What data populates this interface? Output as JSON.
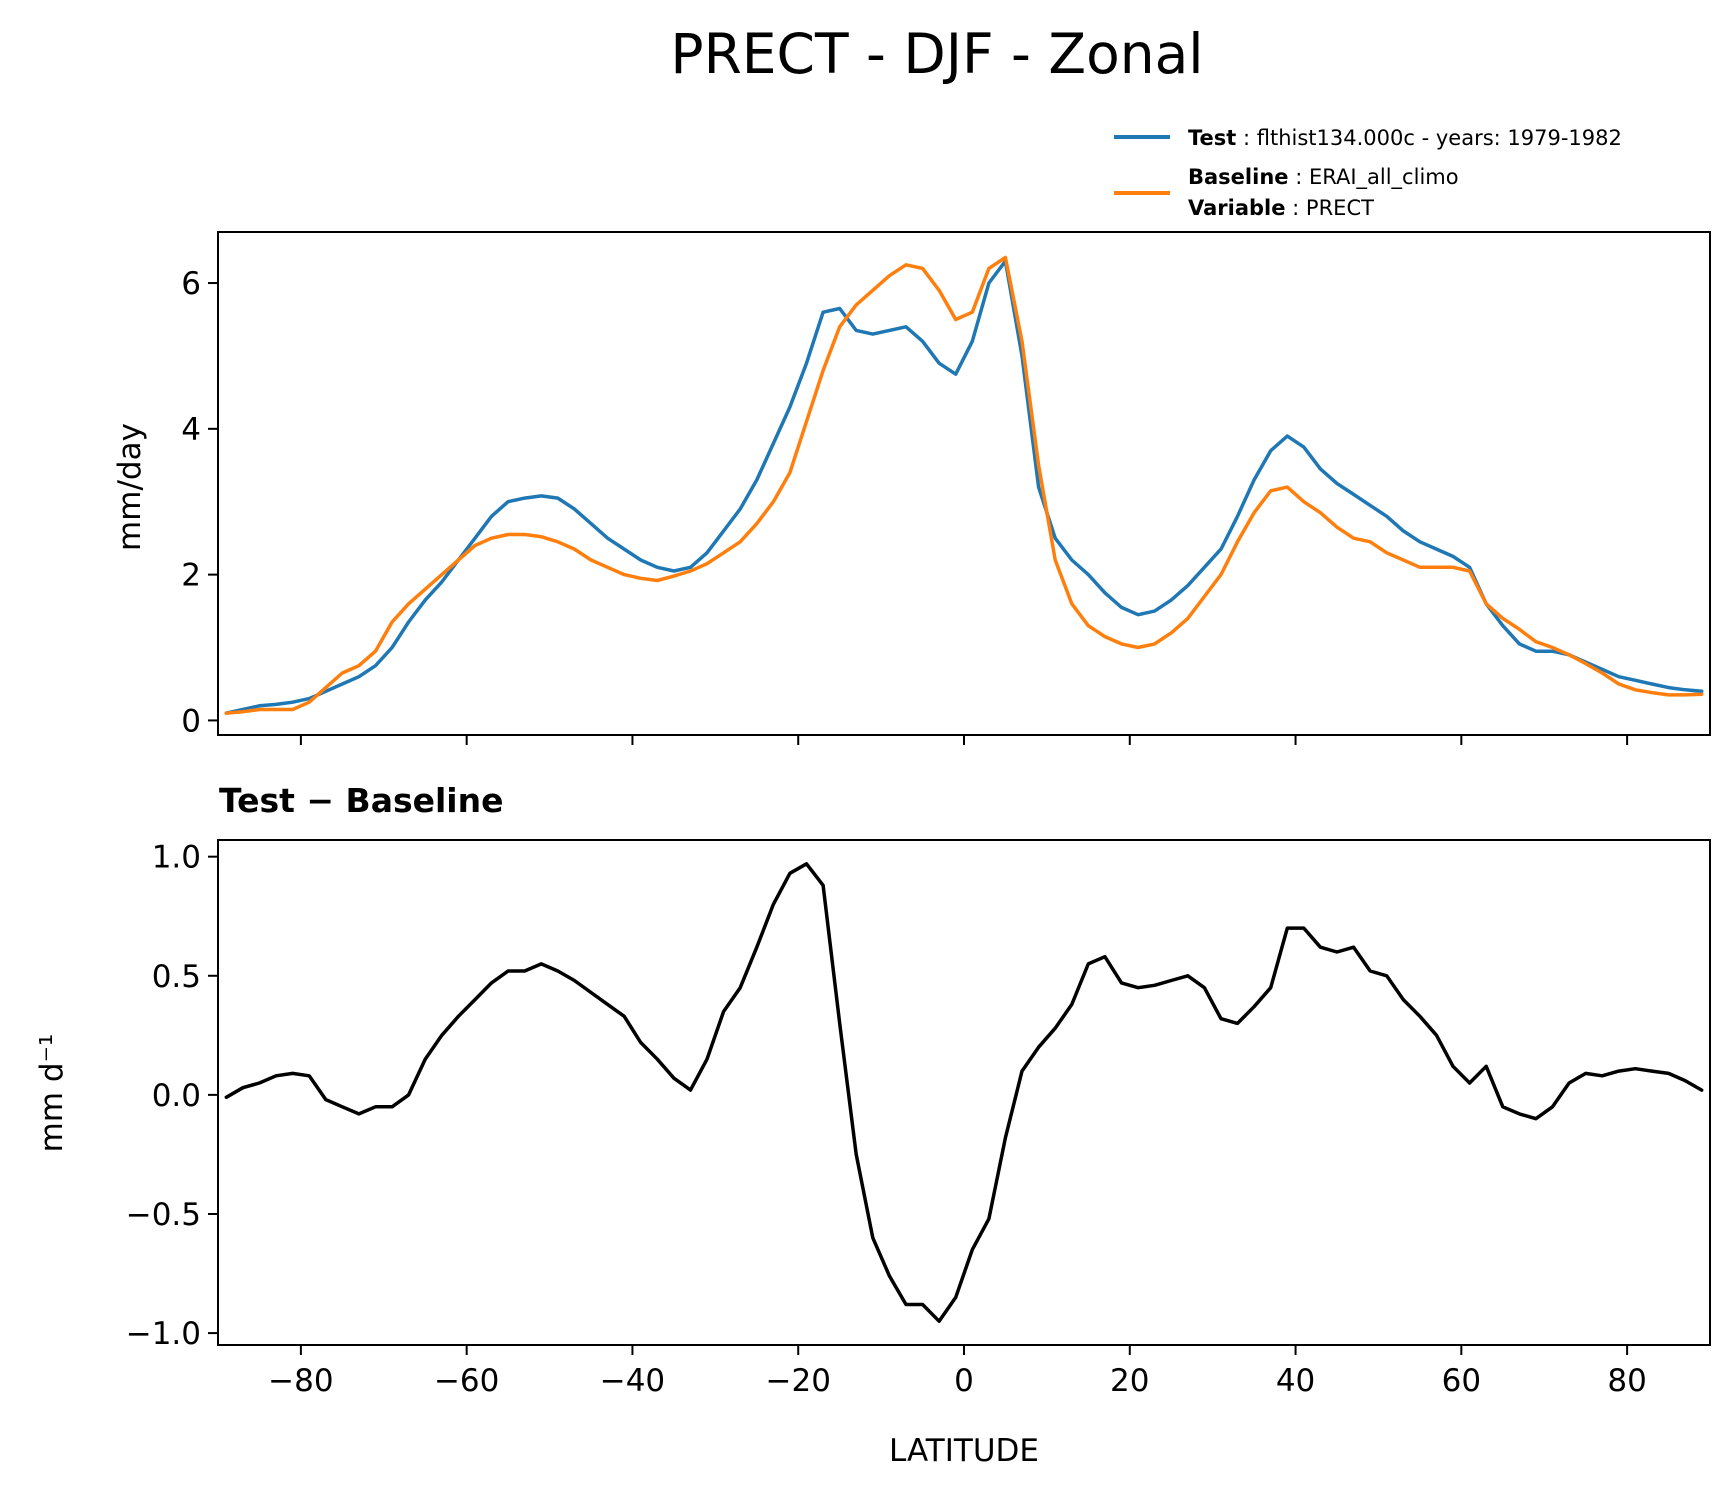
{
  "colors": {
    "test": "#1f77b4",
    "baseline": "#ff7f0e",
    "diff": "#000000"
  },
  "chart_data": [
    {
      "type": "line",
      "title": "PRECT - DJF - Zonal",
      "xlabel": "",
      "ylabel": "mm/day",
      "xlim": [
        -90,
        90
      ],
      "ylim": [
        -0.2,
        6.7
      ],
      "xticks": [
        -80,
        -60,
        -40,
        -20,
        0,
        20,
        40,
        60,
        80
      ],
      "yticks": [
        0,
        2,
        4,
        6
      ],
      "ytick_labels": [
        "0",
        "2",
        "4",
        "6"
      ],
      "legend": {
        "location": "top-right",
        "entries": [
          {
            "key": "Test",
            "text": "flthist134.000c - years: 1979-1982",
            "color": "#1f77b4"
          },
          {
            "key": "Baseline",
            "text": "ERAI_all_climo",
            "color": "#ff7f0e"
          },
          {
            "key": "Variable",
            "text": "PRECT"
          }
        ]
      },
      "series": [
        {
          "name": "Test",
          "color": "#1f77b4",
          "x": [
            -89,
            -87,
            -85,
            -83,
            -81,
            -79,
            -77,
            -75,
            -73,
            -71,
            -69,
            -67,
            -65,
            -63,
            -61,
            -59,
            -57,
            -55,
            -53,
            -51,
            -49,
            -47,
            -45,
            -43,
            -41,
            -39,
            -37,
            -35,
            -33,
            -31,
            -29,
            -27,
            -25,
            -23,
            -21,
            -19,
            -17,
            -15,
            -13,
            -11,
            -9,
            -7,
            -5,
            -3,
            -1,
            1,
            3,
            5,
            7,
            9,
            11,
            13,
            15,
            17,
            19,
            21,
            23,
            25,
            27,
            29,
            31,
            33,
            35,
            37,
            39,
            41,
            43,
            45,
            47,
            49,
            51,
            53,
            55,
            57,
            59,
            61,
            63,
            65,
            67,
            69,
            71,
            73,
            75,
            77,
            79,
            81,
            83,
            85,
            87,
            89
          ],
          "y": [
            0.1,
            0.15,
            0.2,
            0.22,
            0.25,
            0.3,
            0.4,
            0.5,
            0.6,
            0.75,
            1.0,
            1.35,
            1.65,
            1.9,
            2.2,
            2.5,
            2.8,
            3.0,
            3.05,
            3.08,
            3.05,
            2.9,
            2.7,
            2.5,
            2.35,
            2.2,
            2.1,
            2.05,
            2.1,
            2.3,
            2.6,
            2.9,
            3.3,
            3.8,
            4.3,
            4.9,
            5.6,
            5.65,
            5.35,
            5.3,
            5.35,
            5.4,
            5.2,
            4.9,
            4.75,
            5.2,
            6.0,
            6.3,
            5.0,
            3.2,
            2.5,
            2.2,
            2.0,
            1.75,
            1.55,
            1.45,
            1.5,
            1.65,
            1.85,
            2.1,
            2.35,
            2.8,
            3.3,
            3.7,
            3.9,
            3.75,
            3.45,
            3.25,
            3.1,
            2.95,
            2.8,
            2.6,
            2.45,
            2.35,
            2.25,
            2.1,
            1.6,
            1.3,
            1.05,
            0.95,
            0.95,
            0.9,
            0.8,
            0.7,
            0.6,
            0.55,
            0.5,
            0.45,
            0.42,
            0.4
          ]
        },
        {
          "name": "Baseline",
          "color": "#ff7f0e",
          "x": [
            -89,
            -87,
            -85,
            -83,
            -81,
            -79,
            -77,
            -75,
            -73,
            -71,
            -69,
            -67,
            -65,
            -63,
            -61,
            -59,
            -57,
            -55,
            -53,
            -51,
            -49,
            -47,
            -45,
            -43,
            -41,
            -39,
            -37,
            -35,
            -33,
            -31,
            -29,
            -27,
            -25,
            -23,
            -21,
            -19,
            -17,
            -15,
            -13,
            -11,
            -9,
            -7,
            -5,
            -3,
            -1,
            1,
            3,
            5,
            7,
            9,
            11,
            13,
            15,
            17,
            19,
            21,
            23,
            25,
            27,
            29,
            31,
            33,
            35,
            37,
            39,
            41,
            43,
            45,
            47,
            49,
            51,
            53,
            55,
            57,
            59,
            61,
            63,
            65,
            67,
            69,
            71,
            73,
            75,
            77,
            79,
            81,
            83,
            85,
            87,
            89
          ],
          "y": [
            0.1,
            0.12,
            0.15,
            0.15,
            0.15,
            0.25,
            0.45,
            0.65,
            0.75,
            0.95,
            1.35,
            1.6,
            1.8,
            2.0,
            2.2,
            2.4,
            2.5,
            2.55,
            2.55,
            2.52,
            2.45,
            2.35,
            2.2,
            2.1,
            2.0,
            1.95,
            1.92,
            1.98,
            2.05,
            2.15,
            2.3,
            2.45,
            2.7,
            3.0,
            3.4,
            4.1,
            4.8,
            5.4,
            5.7,
            5.9,
            6.1,
            6.25,
            6.2,
            5.9,
            5.5,
            5.6,
            6.2,
            6.35,
            5.2,
            3.5,
            2.2,
            1.6,
            1.3,
            1.15,
            1.05,
            1.0,
            1.05,
            1.2,
            1.4,
            1.7,
            2.0,
            2.45,
            2.85,
            3.15,
            3.2,
            3.0,
            2.85,
            2.65,
            2.5,
            2.45,
            2.3,
            2.2,
            2.1,
            2.1,
            2.1,
            2.05,
            1.6,
            1.4,
            1.25,
            1.08,
            1.0,
            0.9,
            0.78,
            0.65,
            0.5,
            0.42,
            0.38,
            0.35,
            0.35,
            0.36
          ]
        }
      ]
    },
    {
      "type": "line",
      "title": "Test − Baseline",
      "xlabel": "LATITUDE",
      "ylabel": "mm d⁻¹",
      "xlim": [
        -90,
        90
      ],
      "ylim": [
        -1.05,
        1.07
      ],
      "xticks": [
        -80,
        -60,
        -40,
        -20,
        0,
        20,
        40,
        60,
        80
      ],
      "xtick_labels": [
        "−80",
        "−60",
        "−40",
        "−20",
        "0",
        "20",
        "40",
        "60",
        "80"
      ],
      "yticks": [
        -1.0,
        -0.5,
        0.0,
        0.5,
        1.0
      ],
      "ytick_labels": [
        "−1.0",
        "−0.5",
        "0.0",
        "0.5",
        "1.0"
      ],
      "series": [
        {
          "name": "Test − Baseline",
          "color": "#000000",
          "x": [
            -89,
            -87,
            -85,
            -83,
            -81,
            -79,
            -77,
            -75,
            -73,
            -71,
            -69,
            -67,
            -65,
            -63,
            -61,
            -59,
            -57,
            -55,
            -53,
            -51,
            -49,
            -47,
            -45,
            -43,
            -41,
            -39,
            -37,
            -35,
            -33,
            -31,
            -29,
            -27,
            -25,
            -23,
            -21,
            -19,
            -17,
            -15,
            -13,
            -11,
            -9,
            -7,
            -5,
            -3,
            -1,
            1,
            3,
            5,
            7,
            9,
            11,
            13,
            15,
            17,
            19,
            21,
            23,
            25,
            27,
            29,
            31,
            33,
            35,
            37,
            39,
            41,
            43,
            45,
            47,
            49,
            51,
            53,
            55,
            57,
            59,
            61,
            63,
            65,
            67,
            69,
            71,
            73,
            75,
            77,
            79,
            81,
            83,
            85,
            87,
            89
          ],
          "y": [
            -0.01,
            0.03,
            0.05,
            0.08,
            0.09,
            0.08,
            -0.02,
            -0.05,
            -0.08,
            -0.05,
            -0.05,
            0.0,
            0.15,
            0.25,
            0.33,
            0.4,
            0.47,
            0.52,
            0.52,
            0.55,
            0.52,
            0.48,
            0.43,
            0.38,
            0.33,
            0.22,
            0.15,
            0.07,
            0.02,
            0.15,
            0.35,
            0.45,
            0.62,
            0.8,
            0.93,
            0.97,
            0.88,
            0.3,
            -0.25,
            -0.6,
            -0.76,
            -0.88,
            -0.88,
            -0.95,
            -0.85,
            -0.65,
            -0.52,
            -0.18,
            0.1,
            0.2,
            0.28,
            0.38,
            0.55,
            0.58,
            0.47,
            0.45,
            0.46,
            0.48,
            0.5,
            0.45,
            0.32,
            0.3,
            0.37,
            0.45,
            0.7,
            0.7,
            0.62,
            0.6,
            0.62,
            0.52,
            0.5,
            0.4,
            0.33,
            0.25,
            0.12,
            0.05,
            0.12,
            -0.05,
            -0.08,
            -0.1,
            -0.05,
            0.05,
            0.09,
            0.08,
            0.1,
            0.11,
            0.1,
            0.09,
            0.06,
            0.02
          ]
        }
      ]
    }
  ]
}
